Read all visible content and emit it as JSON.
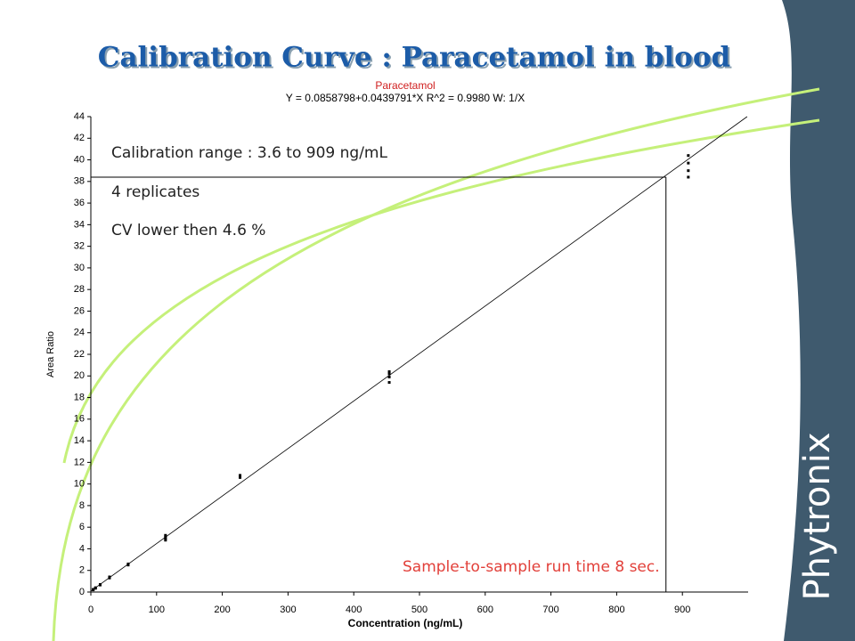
{
  "slide_title": "Calibration Curve : Paracetamol in blood",
  "logo": "Phytronix",
  "chart_data": {
    "type": "scatter",
    "title": "Paracetamol",
    "subtitle": "Y = 0.0858798+0.0439791*X   R^2 = 0.9980   W: 1/X",
    "x_label": "Concentration (ng/mL)",
    "y_label": "Area Ratio",
    "annotations": [
      "Calibration range : 3.6 to 909 ng/mL",
      "4 replicates",
      "CV lower then 4.6 %",
      "Sample-to-sample run time 8 sec."
    ],
    "fit": {
      "intercept": 0.0858798,
      "slope": 0.0439791
    },
    "readout": {
      "x": 875,
      "y": 38.4
    },
    "color": "#000000",
    "xlim": [
      0,
      1000
    ],
    "ylim": [
      0,
      44
    ],
    "xticks": [
      0,
      100,
      200,
      300,
      400,
      500,
      600,
      700,
      800,
      900
    ],
    "yticks": [
      0,
      2,
      4,
      6,
      8,
      10,
      12,
      14,
      16,
      18,
      20,
      22,
      24,
      26,
      28,
      30,
      32,
      34,
      36,
      38,
      40,
      42,
      44
    ],
    "x": [
      3.6,
      3.6,
      7.1,
      7.1,
      14.2,
      14.2,
      28.4,
      28.4,
      56.8,
      56.8,
      113.6,
      113.6,
      113.6,
      113.6,
      227,
      227,
      454,
      454,
      454,
      454,
      909,
      909,
      909,
      909
    ],
    "values": [
      0.2,
      0.25,
      0.35,
      0.4,
      0.65,
      0.7,
      1.3,
      1.4,
      2.5,
      2.6,
      4.8,
      4.95,
      5.1,
      5.25,
      10.6,
      10.8,
      19.4,
      19.9,
      20.2,
      20.4,
      38.4,
      39.0,
      39.7,
      40.4
    ]
  }
}
